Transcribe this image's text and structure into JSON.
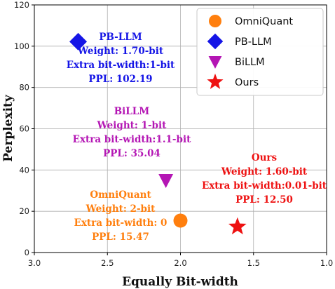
{
  "chart_data": {
    "type": "scatter",
    "title": "",
    "xlabel": "Equally Bit-width",
    "ylabel": "Perplexity",
    "xlim": [
      3.0,
      1.0
    ],
    "ylim": [
      0,
      120
    ],
    "x_reversed": true,
    "xticks": [
      "3.0",
      "2.5",
      "2.0",
      "1.5",
      "1.0"
    ],
    "yticks": [
      "0",
      "20",
      "40",
      "60",
      "80",
      "100",
      "120"
    ],
    "grid": true,
    "legend_position": "top-right",
    "series": [
      {
        "name": "OmniQuant",
        "x": 2.0,
        "y": 15.47,
        "marker": "circle",
        "color": "#ff7f0e",
        "annotation": [
          "OmniQuant",
          "Weight: 2-bit",
          "Extra bit-width: 0",
          "PPL: 15.47"
        ]
      },
      {
        "name": "PB-LLM",
        "x": 2.7,
        "y": 102.19,
        "marker": "diamond",
        "color": "#1515e6",
        "annotation": [
          "PB-LLM",
          "Weight: 1.70-bit",
          "Extra bit-width:1-bit",
          "PPL: 102.19"
        ]
      },
      {
        "name": "BiLLM",
        "x": 2.1,
        "y": 35.04,
        "marker": "triangle-down",
        "color": "#b416b4",
        "annotation": [
          "BiLLM",
          "Weight: 1-bit",
          "Extra bit-width:1.1-bit",
          "PPL: 35.04"
        ]
      },
      {
        "name": "Ours",
        "x": 1.61,
        "y": 12.5,
        "marker": "star",
        "color": "#ee1111",
        "annotation": [
          "Ours",
          "Weight: 1.60-bit",
          "Extra bit-width:0.01-bit",
          "PPL: 12.50"
        ]
      }
    ]
  }
}
